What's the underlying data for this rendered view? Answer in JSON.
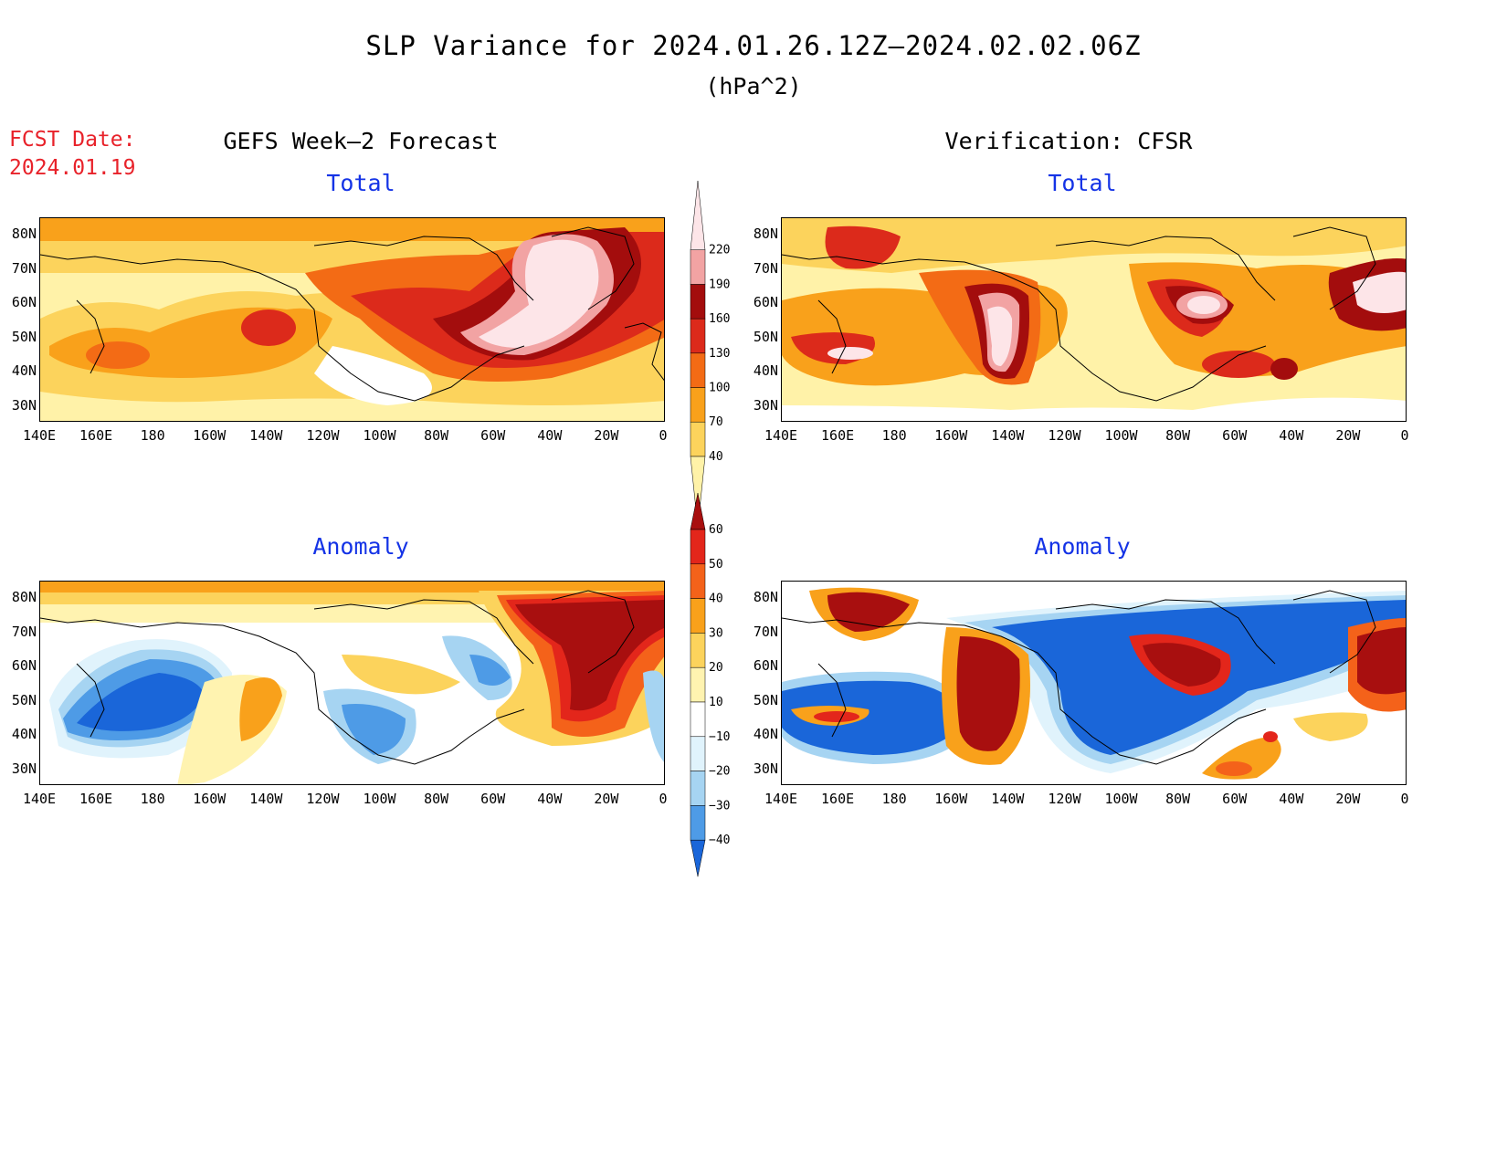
{
  "header": {
    "title": "SLP Variance for 2024.01.26.12Z–2024.02.02.06Z",
    "units": "(hPa^2)",
    "fcst_line1": "FCST Date:",
    "fcst_line2": "2024.01.19"
  },
  "columns": {
    "left_title": "GEFS Week–2 Forecast",
    "right_title": "Verification: CFSR"
  },
  "panels": {
    "top_left_title": "Total",
    "top_right_title": "Total",
    "bottom_left_title": "Anomaly",
    "bottom_right_title": "Anomaly"
  },
  "axes": {
    "lon_labels": [
      "140E",
      "160E",
      "180",
      "160W",
      "140W",
      "120W",
      "100W",
      "80W",
      "60W",
      "40W",
      "20W",
      "0"
    ],
    "lat_labels": [
      "80N",
      "70N",
      "60N",
      "50N",
      "40N",
      "30N"
    ]
  },
  "colorbar_total": {
    "levels": [
      "40",
      "70",
      "100",
      "130",
      "160",
      "190",
      "220"
    ],
    "colors": [
      "#fff2a8",
      "#fcd35c",
      "#f9a11b",
      "#f36b15",
      "#dc2a1b",
      "#a30d0d",
      "#f2a3a3",
      "#fde5e8"
    ]
  },
  "colorbar_anomaly": {
    "levels": [
      "60",
      "50",
      "40",
      "30",
      "20",
      "10",
      "−10",
      "−20",
      "−30",
      "−40"
    ],
    "colors": [
      "#a80f0f",
      "#e3261b",
      "#f4621a",
      "#f9a11b",
      "#fcd35c",
      "#fff3b0",
      "#ffffff",
      "#e0f3fc",
      "#a6d4f2",
      "#4e9be6",
      "#1a66d9"
    ]
  },
  "palette": {
    "total": {
      "c40": "#fff2a8",
      "c70": "#fcd35c",
      "c100": "#f9a11b",
      "c130": "#f36b15",
      "c160": "#dc2a1b",
      "c190": "#a30d0d",
      "c220": "#f2a3a3",
      "c250": "#fde5e8"
    },
    "anom": {
      "p10": "#fff3b0",
      "p20": "#fcd35c",
      "p30": "#f9a11b",
      "p40": "#f4621a",
      "p50": "#e3261b",
      "p60": "#a80f0f",
      "n10": "#e0f3fc",
      "n20": "#a6d4f2",
      "n30": "#4e9be6",
      "n40": "#1a66d9"
    }
  }
}
